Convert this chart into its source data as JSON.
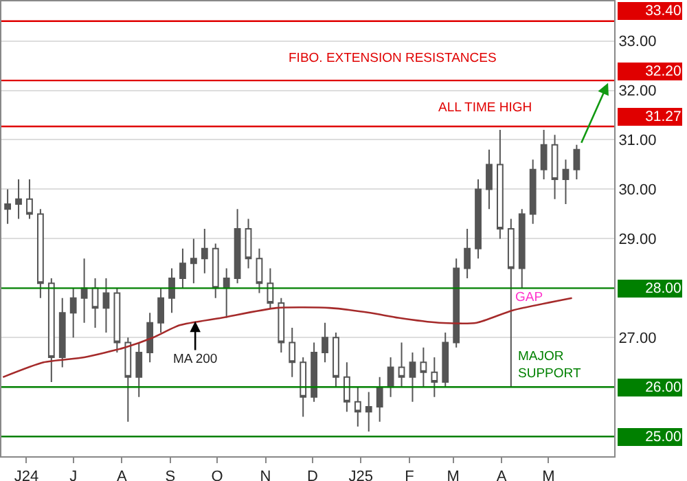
{
  "chart_data": {
    "type": "candlestick",
    "grid": "y",
    "xlim": [
      "2024-05-16",
      "2025-06-12"
    ],
    "xticks": [
      {
        "value": "2024-06-01",
        "label": "J24"
      },
      {
        "value": "2024-07-01",
        "label": "J"
      },
      {
        "value": "2024-08-01",
        "label": "A"
      },
      {
        "value": "2024-09-01",
        "label": "S"
      },
      {
        "value": "2024-10-01",
        "label": "O"
      },
      {
        "value": "2024-11-01",
        "label": "N"
      },
      {
        "value": "2024-12-01",
        "label": "D"
      },
      {
        "value": "2025-01-01",
        "label": "J25"
      },
      {
        "value": "2025-02-01",
        "label": "F"
      },
      {
        "value": "2025-03-01",
        "label": "M"
      },
      {
        "value": "2025-04-01",
        "label": "A"
      },
      {
        "value": "2025-05-01",
        "label": "M"
      }
    ],
    "ylim": [
      24.6,
      33.8
    ],
    "yticks": [
      {
        "value": 27,
        "label": "27.00"
      },
      {
        "value": 29,
        "label": "29.00"
      },
      {
        "value": 30,
        "label": "30.00"
      },
      {
        "value": 31,
        "label": "31.00"
      },
      {
        "value": 32,
        "label": "32.00"
      },
      {
        "value": 33,
        "label": "33.00"
      }
    ],
    "series": [
      {
        "color": "#555555",
        "x": [
          "2024-05-20",
          "2024-05-27",
          "2024-06-03",
          "2024-06-10",
          "2024-06-17",
          "2024-06-24",
          "2024-07-01",
          "2024-07-08",
          "2024-07-15",
          "2024-07-22",
          "2024-07-29",
          "2024-08-05",
          "2024-08-12",
          "2024-08-19",
          "2024-08-26",
          "2024-09-02",
          "2024-09-09",
          "2024-09-16",
          "2024-09-23",
          "2024-09-30",
          "2024-10-07",
          "2024-10-14",
          "2024-10-21",
          "2024-10-28",
          "2024-11-04",
          "2024-11-11",
          "2024-11-18",
          "2024-11-25",
          "2024-12-02",
          "2024-12-09",
          "2024-12-16",
          "2024-12-23",
          "2024-12-30",
          "2025-01-06",
          "2025-01-13",
          "2025-01-20",
          "2025-01-27",
          "2025-02-03",
          "2025-02-10",
          "2025-02-17",
          "2025-02-24",
          "2025-03-03",
          "2025-03-10",
          "2025-03-17",
          "2025-03-24",
          "2025-03-31",
          "2025-04-07",
          "2025-04-14",
          "2025-04-21",
          "2025-04-28",
          "2025-05-05",
          "2025-05-12",
          "2025-05-19"
        ],
        "ohlc": [
          [
            29.6,
            30.0,
            29.3,
            29.7
          ],
          [
            29.7,
            30.2,
            29.4,
            29.8
          ],
          [
            29.8,
            30.2,
            29.4,
            29.5
          ],
          [
            29.5,
            29.6,
            27.8,
            28.1
          ],
          [
            28.1,
            28.2,
            26.1,
            26.6
          ],
          [
            26.6,
            27.8,
            26.4,
            27.5
          ],
          [
            27.5,
            28.0,
            27.0,
            27.8
          ],
          [
            27.8,
            28.6,
            27.3,
            28.0
          ],
          [
            28.0,
            28.2,
            27.2,
            27.6
          ],
          [
            27.6,
            28.2,
            27.1,
            27.9
          ],
          [
            27.9,
            28.0,
            26.7,
            26.9
          ],
          [
            26.9,
            27.0,
            25.3,
            26.2
          ],
          [
            26.2,
            26.9,
            25.8,
            26.7
          ],
          [
            26.7,
            27.5,
            26.5,
            27.3
          ],
          [
            27.3,
            28.0,
            27.1,
            27.8
          ],
          [
            27.8,
            28.4,
            27.5,
            28.2
          ],
          [
            28.2,
            28.8,
            28.0,
            28.5
          ],
          [
            28.5,
            29.0,
            28.1,
            28.6
          ],
          [
            28.6,
            29.2,
            28.3,
            28.8
          ],
          [
            28.8,
            28.9,
            27.8,
            28.0
          ],
          [
            28.0,
            28.4,
            27.4,
            28.2
          ],
          [
            28.2,
            29.6,
            28.1,
            29.2
          ],
          [
            29.2,
            29.4,
            28.4,
            28.6
          ],
          [
            28.6,
            28.8,
            27.9,
            28.1
          ],
          [
            28.1,
            28.4,
            27.6,
            27.7
          ],
          [
            27.7,
            27.8,
            26.7,
            26.9
          ],
          [
            26.9,
            27.2,
            26.2,
            26.5
          ],
          [
            26.5,
            26.6,
            25.4,
            25.8
          ],
          [
            25.8,
            26.9,
            25.7,
            26.7
          ],
          [
            26.7,
            27.3,
            26.5,
            27.0
          ],
          [
            27.0,
            27.1,
            26.0,
            26.2
          ],
          [
            26.2,
            26.5,
            25.5,
            25.7
          ],
          [
            25.7,
            26.0,
            25.2,
            25.5
          ],
          [
            25.5,
            25.9,
            25.1,
            25.6
          ],
          [
            25.6,
            26.2,
            25.3,
            26.0
          ],
          [
            26.0,
            26.6,
            25.8,
            26.4
          ],
          [
            26.4,
            26.9,
            26.0,
            26.2
          ],
          [
            26.2,
            26.7,
            25.7,
            26.5
          ],
          [
            26.5,
            26.8,
            26.0,
            26.3
          ],
          [
            26.3,
            26.6,
            25.8,
            26.1
          ],
          [
            26.1,
            27.1,
            26.0,
            26.9
          ],
          [
            26.9,
            28.6,
            26.8,
            28.4
          ],
          [
            28.4,
            29.2,
            28.2,
            28.8
          ],
          [
            28.8,
            30.2,
            28.6,
            30.0
          ],
          [
            30.0,
            30.8,
            29.6,
            30.5
          ],
          [
            30.5,
            31.2,
            29.0,
            29.2
          ],
          [
            29.2,
            29.4,
            26.0,
            28.4
          ],
          [
            28.4,
            29.6,
            28.0,
            29.5
          ],
          [
            29.5,
            30.6,
            29.3,
            30.4
          ],
          [
            30.4,
            31.2,
            30.2,
            30.9
          ],
          [
            30.9,
            31.1,
            29.8,
            30.2
          ],
          [
            30.2,
            30.6,
            29.7,
            30.4
          ],
          [
            30.4,
            30.9,
            30.2,
            30.8
          ]
        ]
      },
      {
        "type": "line",
        "color": "#a52a2a",
        "x": [
          "2024-05-17",
          "2024-06-12",
          "2024-07-08",
          "2024-08-03",
          "2024-08-21",
          "2024-09-07",
          "2024-10-04",
          "2024-11-08",
          "2024-12-12",
          "2025-01-07",
          "2025-01-25",
          "2025-02-20",
          "2025-03-16",
          "2025-04-08",
          "2025-05-16"
        ],
        "values": [
          26.2,
          26.5,
          26.6,
          26.8,
          27.0,
          27.25,
          27.4,
          27.6,
          27.6,
          27.5,
          27.4,
          27.3,
          27.3,
          27.55,
          27.8
        ]
      }
    ],
    "ref_lines": [
      {
        "axis": "y",
        "value": 33.4,
        "label": "33.40",
        "color": "#e00000"
      },
      {
        "axis": "y",
        "value": 32.2,
        "label": "32.20",
        "color": "#e00000"
      },
      {
        "axis": "y",
        "value": 31.27,
        "label": "31.27",
        "color": "#e00000"
      },
      {
        "axis": "y",
        "value": 28,
        "label": "28.00",
        "color": "#008000"
      },
      {
        "axis": "y",
        "value": 26,
        "label": "26.00",
        "color": "#008000"
      },
      {
        "axis": "y",
        "value": 25,
        "label": "25.00",
        "color": "#008000"
      }
    ],
    "annotations": [
      "FIBO. EXTENSION RESISTANCES",
      "ALL TIME HIGH",
      "GAP",
      "MAJOR SUPPORT",
      {
        "text": "MA 200",
        "x": "2024-09-17",
        "y": 27.33
      }
    ]
  }
}
